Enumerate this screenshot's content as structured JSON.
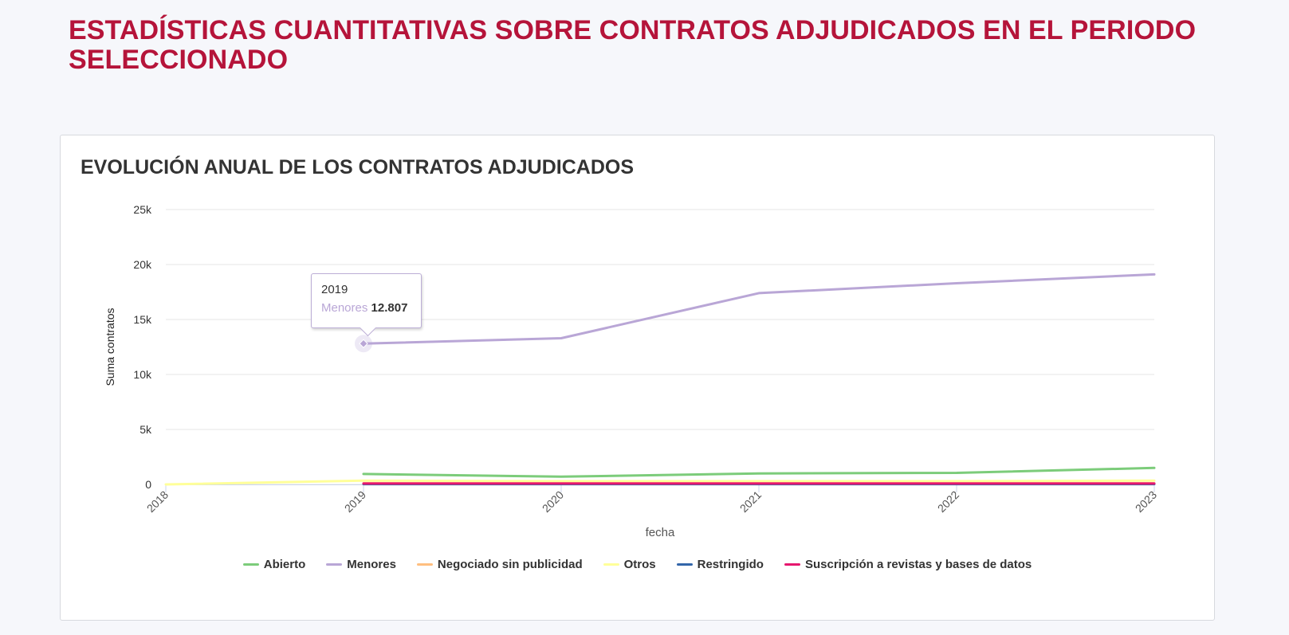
{
  "page_title": "ESTADÍSTICAS CUANTITATIVAS SOBRE CONTRATOS ADJUDICADOS EN EL PERIODO SELECCIONADO",
  "card_title": "EVOLUCIÓN ANUAL DE LOS CONTRATOS ADJUDICADOS",
  "tooltip": {
    "year": "2019",
    "series": "Menores",
    "value": "12.807"
  },
  "chart_data": {
    "type": "line",
    "xlabel": "fecha",
    "ylabel": "Suma contratos",
    "x": [
      2018,
      2019,
      2020,
      2021,
      2022,
      2023
    ],
    "ylim": [
      0,
      25000
    ],
    "yticks": [
      0,
      5000,
      10000,
      15000,
      20000,
      25000
    ],
    "ytick_labels": [
      "0",
      "5k",
      "10k",
      "15k",
      "20k",
      "25k"
    ],
    "grid": true,
    "legend_position": "bottom",
    "series": [
      {
        "name": "Abierto",
        "color": "#7ccc7a",
        "values": [
          null,
          950,
          700,
          1000,
          1050,
          1500
        ]
      },
      {
        "name": "Menores",
        "color": "#b9a6d6",
        "values": [
          null,
          12807,
          13300,
          17400,
          18300,
          19100
        ]
      },
      {
        "name": "Negociado sin publicidad",
        "color": "#ffbf80",
        "values": [
          null,
          100,
          100,
          100,
          100,
          100
        ]
      },
      {
        "name": "Otros",
        "color": "#ffff99",
        "values": [
          0,
          350,
          300,
          300,
          300,
          350
        ]
      },
      {
        "name": "Restringido",
        "color": "#3366aa",
        "values": [
          null,
          30,
          30,
          30,
          30,
          30
        ]
      },
      {
        "name": "Suscripción a revistas y bases de datos",
        "color": "#e6176e",
        "values": [
          null,
          80,
          80,
          80,
          80,
          80
        ]
      }
    ]
  }
}
